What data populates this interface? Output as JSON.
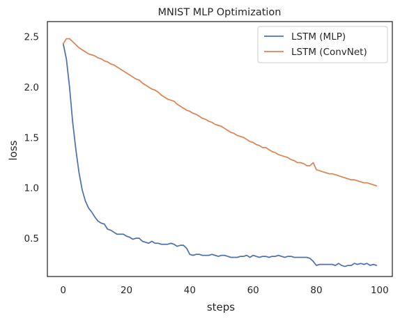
{
  "chart_data": {
    "type": "line",
    "title": "MNIST MLP Optimization",
    "xlabel": "steps",
    "ylabel": "loss",
    "xlim": [
      -5,
      104
    ],
    "ylim": [
      0.12,
      2.65
    ],
    "xticks": [
      0,
      20,
      40,
      60,
      80,
      100
    ],
    "yticks": [
      0.5,
      1.0,
      1.5,
      2.0,
      2.5
    ],
    "xtick_labels": [
      "0",
      "20",
      "40",
      "60",
      "80",
      "100"
    ],
    "ytick_labels": [
      "0.5",
      "1.0",
      "1.5",
      "2.0",
      "2.5"
    ],
    "grid": false,
    "legend_position": "top-right",
    "series": [
      {
        "name": "LSTM (MLP)",
        "color": "#4c72b0",
        "x": [
          0,
          1,
          2,
          3,
          4,
          5,
          6,
          7,
          8,
          9,
          10,
          11,
          12,
          13,
          14,
          15,
          16,
          17,
          18,
          19,
          20,
          21,
          22,
          23,
          24,
          25,
          26,
          27,
          28,
          29,
          30,
          31,
          32,
          33,
          34,
          35,
          36,
          37,
          38,
          39,
          40,
          41,
          42,
          43,
          44,
          45,
          46,
          47,
          48,
          49,
          50,
          51,
          52,
          53,
          54,
          55,
          56,
          57,
          58,
          59,
          60,
          61,
          62,
          63,
          64,
          65,
          66,
          67,
          68,
          69,
          70,
          71,
          72,
          73,
          74,
          75,
          76,
          77,
          78,
          79,
          80,
          81,
          82,
          83,
          84,
          85,
          86,
          87,
          88,
          89,
          90,
          91,
          92,
          93,
          94,
          95,
          96,
          97,
          98,
          99
        ],
        "values": [
          2.43,
          2.28,
          2.0,
          1.65,
          1.38,
          1.15,
          0.98,
          0.87,
          0.8,
          0.76,
          0.71,
          0.67,
          0.65,
          0.64,
          0.59,
          0.58,
          0.56,
          0.54,
          0.54,
          0.54,
          0.52,
          0.51,
          0.49,
          0.5,
          0.5,
          0.47,
          0.46,
          0.45,
          0.47,
          0.45,
          0.45,
          0.44,
          0.44,
          0.44,
          0.45,
          0.44,
          0.42,
          0.43,
          0.43,
          0.4,
          0.34,
          0.33,
          0.34,
          0.34,
          0.33,
          0.33,
          0.33,
          0.34,
          0.33,
          0.32,
          0.33,
          0.33,
          0.32,
          0.31,
          0.31,
          0.31,
          0.32,
          0.32,
          0.33,
          0.31,
          0.33,
          0.32,
          0.31,
          0.32,
          0.32,
          0.31,
          0.32,
          0.32,
          0.33,
          0.32,
          0.31,
          0.32,
          0.32,
          0.31,
          0.31,
          0.31,
          0.31,
          0.31,
          0.3,
          0.27,
          0.23,
          0.24,
          0.24,
          0.24,
          0.24,
          0.24,
          0.23,
          0.25,
          0.23,
          0.22,
          0.23,
          0.23,
          0.25,
          0.24,
          0.25,
          0.24,
          0.25,
          0.23,
          0.24,
          0.23
        ]
      },
      {
        "name": "LSTM (ConvNet)",
        "color": "#dd8452",
        "x": [
          0,
          1,
          2,
          3,
          4,
          5,
          6,
          7,
          8,
          9,
          10,
          11,
          12,
          13,
          14,
          15,
          16,
          17,
          18,
          19,
          20,
          21,
          22,
          23,
          24,
          25,
          26,
          27,
          28,
          29,
          30,
          31,
          32,
          33,
          34,
          35,
          36,
          37,
          38,
          39,
          40,
          41,
          42,
          43,
          44,
          45,
          46,
          47,
          48,
          49,
          50,
          51,
          52,
          53,
          54,
          55,
          56,
          57,
          58,
          59,
          60,
          61,
          62,
          63,
          64,
          65,
          66,
          67,
          68,
          69,
          70,
          71,
          72,
          73,
          74,
          75,
          76,
          77,
          78,
          79,
          80,
          81,
          82,
          83,
          84,
          85,
          86,
          87,
          88,
          89,
          90,
          91,
          92,
          93,
          94,
          95,
          96,
          97,
          98,
          99
        ],
        "values": [
          2.43,
          2.48,
          2.48,
          2.45,
          2.42,
          2.39,
          2.37,
          2.35,
          2.33,
          2.32,
          2.31,
          2.29,
          2.28,
          2.26,
          2.25,
          2.23,
          2.22,
          2.2,
          2.18,
          2.16,
          2.14,
          2.12,
          2.1,
          2.08,
          2.07,
          2.04,
          2.02,
          2.0,
          1.98,
          1.97,
          1.95,
          1.92,
          1.9,
          1.88,
          1.87,
          1.86,
          1.83,
          1.81,
          1.79,
          1.77,
          1.76,
          1.74,
          1.73,
          1.71,
          1.69,
          1.68,
          1.66,
          1.65,
          1.63,
          1.62,
          1.61,
          1.59,
          1.57,
          1.55,
          1.54,
          1.52,
          1.51,
          1.5,
          1.48,
          1.46,
          1.45,
          1.43,
          1.42,
          1.4,
          1.4,
          1.38,
          1.36,
          1.35,
          1.33,
          1.32,
          1.31,
          1.3,
          1.28,
          1.27,
          1.25,
          1.25,
          1.24,
          1.22,
          1.22,
          1.25,
          1.18,
          1.17,
          1.16,
          1.15,
          1.14,
          1.14,
          1.13,
          1.12,
          1.11,
          1.1,
          1.09,
          1.08,
          1.08,
          1.07,
          1.06,
          1.05,
          1.05,
          1.04,
          1.03,
          1.02
        ]
      }
    ]
  }
}
